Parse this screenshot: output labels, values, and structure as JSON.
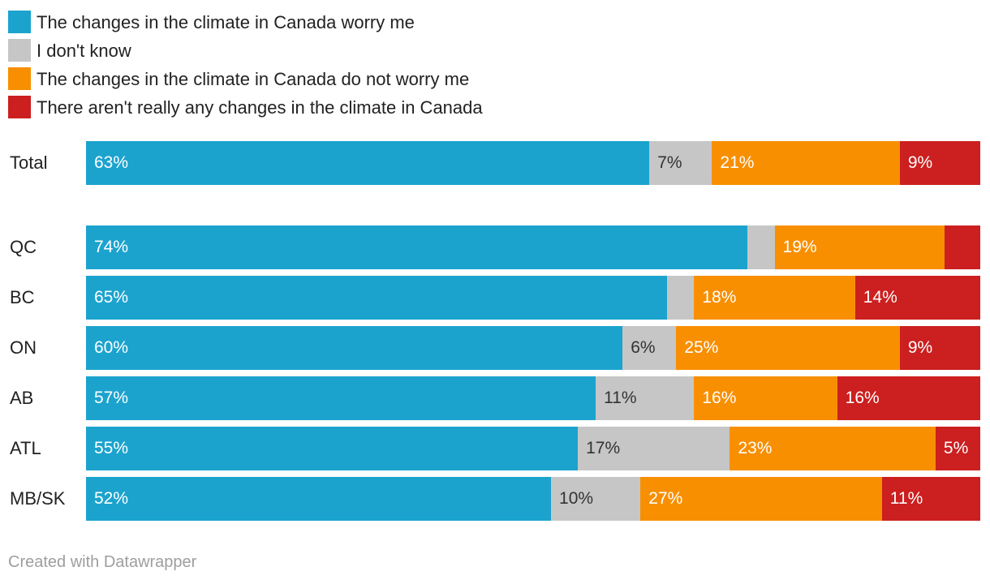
{
  "chart_data": {
    "type": "bar",
    "orientation": "horizontal",
    "stacked": true,
    "categories": [
      "Total",
      "QC",
      "BC",
      "ON",
      "AB",
      "ATL",
      "MB/SK"
    ],
    "series": [
      {
        "name": "The changes in the climate in Canada worry me",
        "color": "#1ba3ce",
        "label_color": "#ffffff",
        "values": [
          63,
          74,
          65,
          60,
          57,
          55,
          52
        ],
        "labels": [
          "63%",
          "74%",
          "65%",
          "60%",
          "57%",
          "55%",
          "52%"
        ]
      },
      {
        "name": "I don't know",
        "color": "#c6c6c6",
        "label_color": "#333333",
        "values": [
          7,
          3,
          3,
          6,
          11,
          17,
          10
        ],
        "labels": [
          "7%",
          "",
          "",
          "6%",
          "11%",
          "17%",
          "10%"
        ]
      },
      {
        "name": "The changes in the climate in Canada do not worry me",
        "color": "#f88f00",
        "label_color": "#ffffff",
        "values": [
          21,
          19,
          18,
          25,
          16,
          23,
          27
        ],
        "labels": [
          "21%",
          "19%",
          "18%",
          "25%",
          "16%",
          "23%",
          "27%"
        ]
      },
      {
        "name": "There aren't really any changes in the climate in Canada",
        "color": "#cc1f1f",
        "label_color": "#ffffff",
        "values": [
          9,
          4,
          14,
          9,
          16,
          5,
          11
        ],
        "labels": [
          "9%",
          "",
          "14%",
          "9%",
          "16%",
          "5%",
          "11%"
        ]
      }
    ],
    "xlim": [
      0,
      100
    ],
    "legend_position": "top-left",
    "grid": false
  },
  "footer": {
    "credit": "Created with Datawrapper"
  }
}
